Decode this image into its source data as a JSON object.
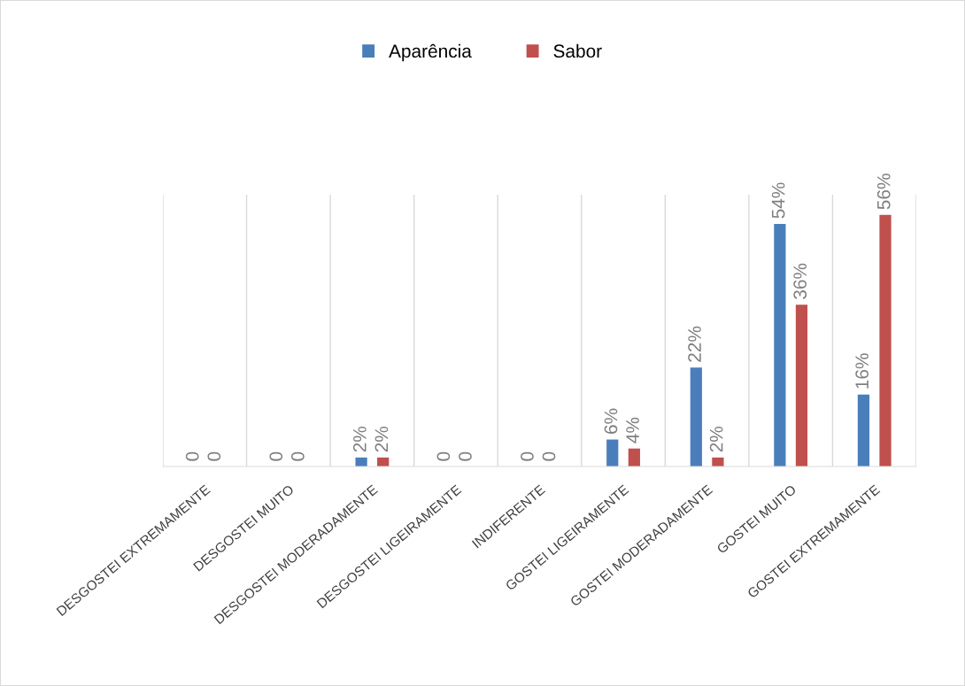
{
  "chart_data": {
    "type": "bar",
    "categories": [
      "DESGOSTEI EXTREMAMENTE",
      "DESGOSTEI MUITO",
      "DESGOSTEI MODERADAMENTE",
      "DESGOSTEI LIGEIRAMENTE",
      "INDIFERENTE",
      "GOSTEI LIGEIRAMENTE",
      "GOSTEI MODERADAMENTE",
      "GOSTEI MUITO",
      "GOSTEI EXTREMAMENTE"
    ],
    "series": [
      {
        "name": "Aparência",
        "color": "#4a7ebb",
        "values": [
          0,
          0,
          2,
          0,
          0,
          6,
          22,
          54,
          16
        ],
        "value_labels": [
          "0",
          "0",
          "2%",
          "0",
          "0",
          "6%",
          "22%",
          "54%",
          "16%"
        ]
      },
      {
        "name": "Sabor",
        "color": "#c0504d",
        "values": [
          0,
          0,
          2,
          0,
          0,
          4,
          2,
          36,
          56
        ],
        "value_labels": [
          "0",
          "0",
          "2%",
          "0",
          "0",
          "4%",
          "2%",
          "36%",
          "56%"
        ]
      }
    ],
    "grid": "x",
    "legend": "top"
  }
}
